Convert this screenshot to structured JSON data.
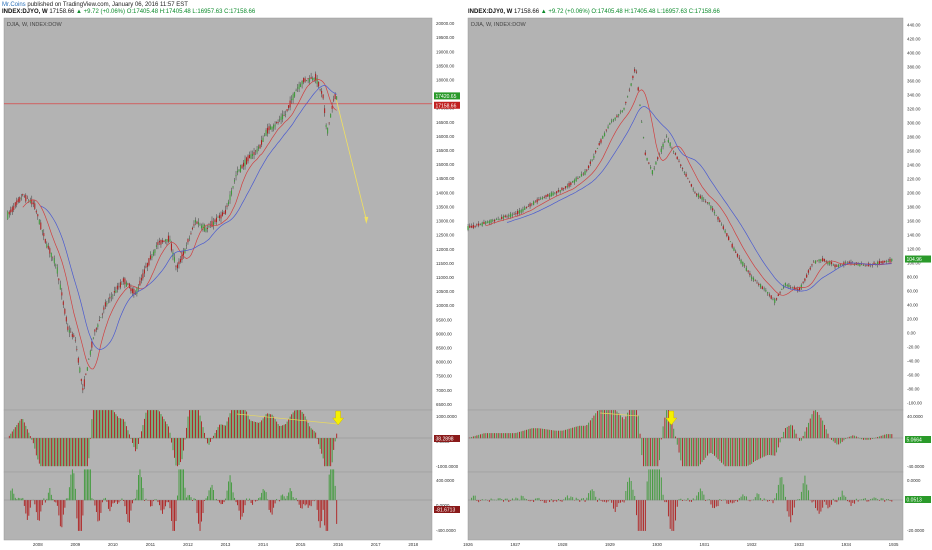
{
  "header": {
    "author": "Mr.Coins",
    "published": "published on TradingView.com, January 06, 2016 11:57 EST"
  },
  "colors": {
    "pane_bg": "#b3b3b3",
    "up_candle": "#3f9a3a",
    "down_candle": "#b01f1f",
    "arrow": "#f5f000",
    "current_price_line": "#e03030"
  },
  "left": {
    "symbol": "INDEX:DJYO, W",
    "price": "17158.66",
    "change": "▲ +9.72 (+0.06%)",
    "ohlc": {
      "o": "O:17405.48",
      "h": "H:17405.48",
      "l": "L:16957.63",
      "c": "C:17158.66"
    },
    "pane_label": "DJIA, W, INDEX:DOW",
    "price_ticks": [
      "20000.00",
      "19500.00",
      "19000.00",
      "18500.00",
      "18000.00",
      "17500.00",
      "17000.00",
      "16500.00",
      "16000.00",
      "15500.00",
      "15000.00",
      "14500.00",
      "14000.00",
      "13500.00",
      "13000.00",
      "12500.00",
      "12000.00",
      "11500.00",
      "11000.00",
      "10500.00",
      "10000.00",
      "9500.00",
      "9000.00",
      "8500.00",
      "8000.00",
      "7500.00",
      "7000.00",
      "6500.00"
    ],
    "price_badges": [
      "17420.65",
      "17158.66"
    ],
    "ind1_ticks": [
      "1000.0000",
      "0.0000",
      "-1000.0000"
    ],
    "ind1_badge": "38.2898",
    "ind2_ticks": [
      "400.0000",
      "0.0000",
      "-400.0000"
    ],
    "ind2_badge": "-81.6713",
    "time_ticks": [
      "2008",
      "2009",
      "2010",
      "2011",
      "2012",
      "2013",
      "2014",
      "2015",
      "2016",
      "2017",
      "2018"
    ]
  },
  "right": {
    "symbol": "INDEX:DJY0, W",
    "price": "17158.66",
    "change": "▲ +9.72 (+0.06%)",
    "ohlc": {
      "o": "O:17405.48",
      "h": "H:17405.48",
      "l": "L:16957.63",
      "c": "C:17158.66"
    },
    "pane_label": "DJIA, W, INDEX:DOW",
    "price_ticks": [
      "440.00",
      "420.00",
      "400.00",
      "380.00",
      "360.00",
      "340.00",
      "320.00",
      "300.00",
      "280.00",
      "260.00",
      "240.00",
      "220.00",
      "200.00",
      "180.00",
      "160.00",
      "140.00",
      "120.00",
      "100.00",
      "80.00",
      "60.00",
      "40.00",
      "20.00",
      "0.00",
      "-20.00",
      "-40.00",
      "-60.00",
      "-80.00",
      "-100.00"
    ],
    "price_badge": "104.96",
    "ind1_ticks": [
      "40.0000",
      "0.0000",
      "-40.0000"
    ],
    "ind1_badge": "5.0664",
    "ind2_ticks": [
      "0.0000",
      "-20.0000"
    ],
    "ind2_badge": "0.0513",
    "time_ticks": [
      "1926",
      "1927",
      "1928",
      "1929",
      "1930",
      "1931",
      "1932",
      "1933",
      "1934",
      "1935"
    ]
  },
  "chart_data": [
    {
      "type": "line",
      "title": "DJIA, W, INDEX:DOW",
      "x": [
        2007.2,
        2007.6,
        2007.9,
        2008.2,
        2008.5,
        2008.8,
        2009.0,
        2009.2,
        2009.5,
        2009.8,
        2010.0,
        2010.3,
        2010.6,
        2010.9,
        2011.2,
        2011.5,
        2011.7,
        2011.9,
        2012.2,
        2012.5,
        2012.8,
        2013.0,
        2013.3,
        2013.6,
        2013.9,
        2014.1,
        2014.4,
        2014.6,
        2014.9,
        2015.1,
        2015.4,
        2015.6,
        2015.7,
        2015.9,
        2016.0
      ],
      "series": [
        {
          "values": [
            13200,
            13900,
            13600,
            12300,
            11400,
            9200,
            8800,
            7000,
            9000,
            10000,
            10400,
            10900,
            10400,
            11400,
            12200,
            12400,
            11300,
            11900,
            13000,
            12700,
            13100,
            13300,
            14700,
            15200,
            15600,
            16200,
            16500,
            16800,
            17700,
            18000,
            18100,
            17400,
            16100,
            17400,
            17420
          ]
        }
      ],
      "annotation": "projected decline arrow from 2016 toward 13000"
    },
    {
      "type": "line",
      "title": "DJIA, W, INDEX:DOW",
      "x": [
        1926.0,
        1926.5,
        1927.0,
        1927.5,
        1928.0,
        1928.5,
        1929.0,
        1929.3,
        1929.55,
        1929.75,
        1929.9,
        1930.2,
        1930.5,
        1930.8,
        1931.1,
        1931.4,
        1931.7,
        1932.0,
        1932.3,
        1932.5,
        1932.7,
        1933.0,
        1933.3,
        1933.5,
        1933.8,
        1934.0,
        1934.5,
        1935.0
      ],
      "series": [
        {
          "values": [
            150,
            160,
            170,
            190,
            205,
            230,
            300,
            320,
            380,
            255,
            230,
            280,
            240,
            200,
            185,
            150,
            110,
            80,
            60,
            45,
            70,
            60,
            100,
            105,
            95,
            100,
            97,
            104.96
          ]
        }
      ]
    }
  ]
}
